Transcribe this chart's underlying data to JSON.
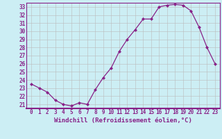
{
  "x": [
    0,
    1,
    2,
    3,
    4,
    5,
    6,
    7,
    8,
    9,
    10,
    11,
    12,
    13,
    14,
    15,
    16,
    17,
    18,
    19,
    20,
    21,
    22,
    23
  ],
  "y": [
    23.5,
    23.0,
    22.5,
    21.5,
    21.0,
    20.8,
    21.2,
    21.0,
    22.8,
    24.3,
    25.5,
    27.5,
    29.0,
    30.2,
    31.5,
    31.5,
    33.0,
    33.2,
    33.3,
    33.2,
    32.5,
    30.5,
    28.0,
    26.0
  ],
  "xlabel": "Windchill (Refroidissement éolien,°C)",
  "ylim_min": 20.5,
  "ylim_max": 33.5,
  "yticks": [
    21,
    22,
    23,
    24,
    25,
    26,
    27,
    28,
    29,
    30,
    31,
    32,
    33
  ],
  "xticks": [
    0,
    1,
    2,
    3,
    4,
    5,
    6,
    7,
    8,
    9,
    10,
    11,
    12,
    13,
    14,
    15,
    16,
    17,
    18,
    19,
    20,
    21,
    22,
    23
  ],
  "line_color": "#882288",
  "marker": "D",
  "marker_size": 2.0,
  "bg_color": "#cceef4",
  "grid_color": "#bbbbbb",
  "spine_color": "#882288",
  "axis_label_color": "#882288",
  "tick_color": "#882288",
  "xlabel_fontsize": 6.5,
  "tick_fontsize": 5.5,
  "linewidth": 0.9
}
